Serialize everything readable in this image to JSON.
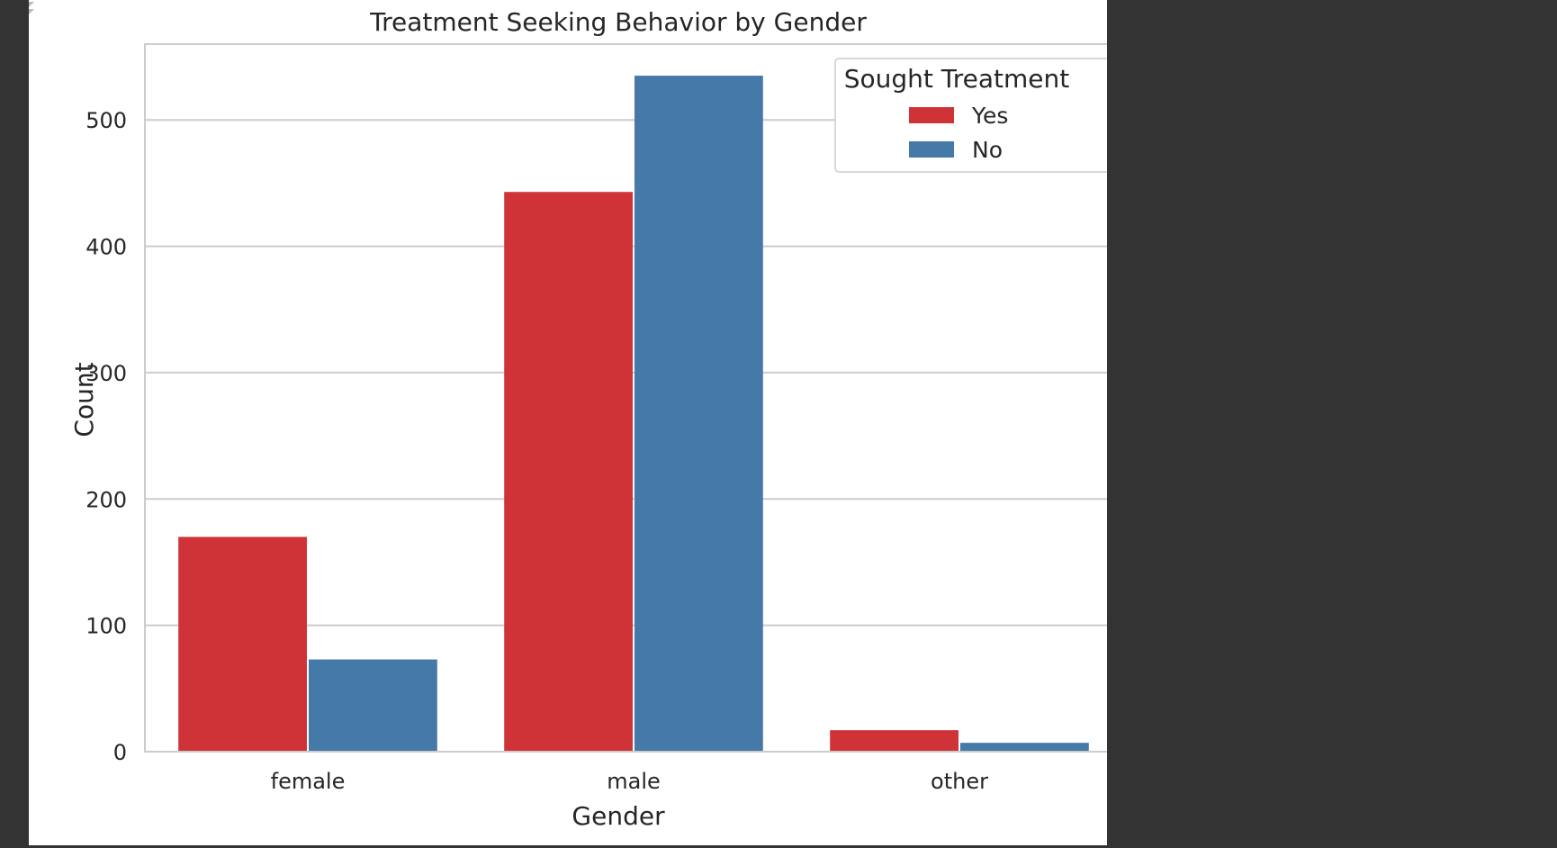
{
  "colors": {
    "background": "#333333",
    "panel": "#ffffff",
    "grid": "#cccccc",
    "axes_edge": "#cccccc",
    "text": "#262626"
  },
  "chart_data": {
    "type": "bar",
    "title": "Treatment Seeking Behavior by Gender",
    "xlabel": "Gender",
    "ylabel": "Count",
    "categories": [
      "female",
      "male",
      "other"
    ],
    "series": [
      {
        "name": "Yes",
        "color": "#d03337",
        "values": [
          170,
          443,
          17
        ]
      },
      {
        "name": "No",
        "color": "#4479a8",
        "values": [
          73,
          535,
          7
        ]
      }
    ],
    "ylim": [
      0,
      560
    ],
    "yticks": [
      0,
      100,
      200,
      300,
      400,
      500
    ],
    "grid": true,
    "legend": {
      "title": "Sought Treatment",
      "position": "top-right"
    }
  }
}
